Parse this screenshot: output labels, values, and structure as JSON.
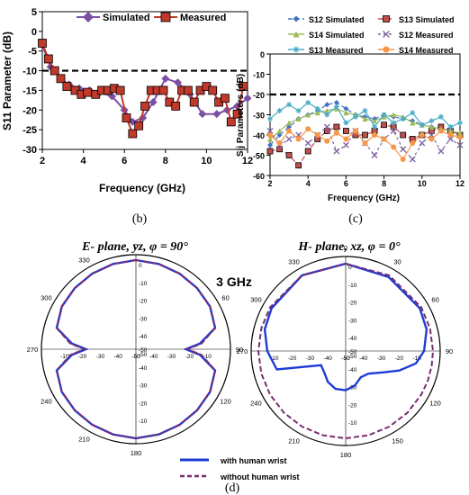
{
  "chart_data": [
    {
      "panel": "(b)",
      "type": "line",
      "ylabel": "S11 Parameter (dB)",
      "xlabel": "Frequency (GHz)",
      "xlim": [
        2,
        12
      ],
      "ylim": [
        -30,
        5
      ],
      "xticks": [
        "2",
        "4",
        "6",
        "8",
        "10",
        "12"
      ],
      "yticks": [
        "5",
        "0",
        "-5",
        "-10",
        "-15",
        "-20",
        "-25",
        "-30"
      ],
      "threshold": -10,
      "legend_position": "top",
      "series": [
        {
          "name": "Simulated",
          "color": "#7b4fa3",
          "marker": "diamond",
          "x": [
            2.0,
            2.4,
            2.9,
            3.3,
            3.8,
            4.3,
            4.8,
            5.4,
            6.0,
            6.4,
            6.9,
            7.4,
            8.0,
            8.6,
            9.2,
            9.8,
            10.5,
            11.0,
            11.5,
            12.0
          ],
          "y": [
            -3.5,
            -9,
            -12,
            -13.5,
            -14.5,
            -15,
            -15.5,
            -16.5,
            -20,
            -23,
            -22,
            -18,
            -12,
            -13,
            -16,
            -21,
            -21,
            -20,
            -19,
            -17
          ]
        },
        {
          "name": "Measured",
          "color": "#c0392b",
          "marker": "square",
          "x": [
            2.0,
            2.3,
            2.6,
            2.9,
            3.2,
            3.6,
            3.9,
            4.2,
            4.6,
            4.9,
            5.2,
            5.5,
            5.8,
            6.1,
            6.4,
            6.7,
            7.0,
            7.3,
            7.6,
            7.9,
            8.2,
            8.5,
            8.8,
            9.1,
            9.4,
            9.7,
            10.0,
            10.3,
            10.6,
            10.9,
            11.2,
            11.5,
            11.8
          ],
          "y": [
            -3,
            -7,
            -10,
            -12,
            -14,
            -15,
            -16,
            -15.5,
            -16,
            -15,
            -15,
            -14.5,
            -15,
            -22,
            -26,
            -24,
            -19,
            -15,
            -15,
            -15,
            -18,
            -19,
            -15,
            -15,
            -18,
            -15,
            -14,
            -15,
            -18,
            -17,
            -23,
            -21,
            -14
          ]
        }
      ]
    },
    {
      "panel": "(c)",
      "type": "line",
      "ylabel": "Sij Parameters (dB)",
      "xlabel": "Frequency (GHz)",
      "xlim": [
        2,
        12
      ],
      "ylim": [
        -60,
        0
      ],
      "xticks": [
        "2",
        "4",
        "6",
        "8",
        "10",
        "12"
      ],
      "yticks": [
        "0",
        "-10",
        "-20",
        "-30",
        "-40",
        "-50",
        "-60"
      ],
      "threshold": -20,
      "legend_position": "top",
      "x": [
        2,
        2.5,
        3,
        3.5,
        4,
        4.5,
        5,
        5.5,
        6,
        6.5,
        7,
        7.5,
        8,
        8.5,
        9,
        9.5,
        10,
        10.5,
        11,
        11.5,
        12
      ],
      "series": [
        {
          "name": "S12 Simulated",
          "color": "#4472c4",
          "marker": "diamond",
          "dash": "5,3",
          "y": [
            -45,
            -40,
            -36,
            -32,
            -30,
            -28,
            -25,
            -24,
            -27,
            -30,
            -31,
            -32,
            -30,
            -31,
            -32,
            -33,
            -35,
            -36,
            -37,
            -38,
            -40
          ]
        },
        {
          "name": "S13 Simulated",
          "color": "#c0504d",
          "marker": "square",
          "dash": "6,3",
          "y": [
            -48,
            -47,
            -50,
            -55,
            -48,
            -42,
            -38,
            -36,
            -38,
            -40,
            -40,
            -38,
            -35,
            -36,
            -40,
            -42,
            -40,
            -38,
            -36,
            -38,
            -40
          ]
        },
        {
          "name": "S14 Simulated",
          "color": "#9bbb59",
          "marker": "triangle",
          "dash": "",
          "y": [
            -42,
            -38,
            -34,
            -32,
            -30,
            -29,
            -28,
            -27,
            -29,
            -30,
            -32,
            -33,
            -31,
            -30,
            -31,
            -34,
            -35,
            -36,
            -37,
            -38,
            -39
          ]
        },
        {
          "name": "S12 Measured",
          "color": "#8064a2",
          "marker": "x",
          "dash": "3,3",
          "y": [
            -38,
            -45,
            -42,
            -40,
            -44,
            -40,
            -36,
            -48,
            -45,
            -38,
            -44,
            -50,
            -42,
            -38,
            -47,
            -52,
            -44,
            -40,
            -48,
            -42,
            -45
          ]
        },
        {
          "name": "S13 Measured",
          "color": "#4bacc6",
          "marker": "star",
          "dash": "",
          "y": [
            -32,
            -28,
            -25,
            -28,
            -24,
            -27,
            -30,
            -26,
            -34,
            -31,
            -28,
            -36,
            -30,
            -34,
            -32,
            -29,
            -35,
            -33,
            -31,
            -36,
            -34
          ]
        },
        {
          "name": "S14 Measured",
          "color": "#f79646",
          "marker": "circle",
          "dash": "",
          "y": [
            -40,
            -44,
            -38,
            -42,
            -37,
            -40,
            -43,
            -39,
            -42,
            -38,
            -44,
            -40,
            -42,
            -46,
            -52,
            -44,
            -40,
            -42,
            -38,
            -40,
            -41
          ]
        }
      ]
    },
    {
      "panel": "(d) left",
      "type": "polar",
      "title": "E- plane, yz, φ = 90°",
      "r_min": -50,
      "r_max": 0,
      "r_ticks": [
        "0",
        "-10",
        "-20",
        "-30",
        "-40",
        "-50"
      ],
      "r_ticks_horizontal": [
        "-10",
        "-20",
        "-30",
        "-40",
        "-50"
      ],
      "angle_labels": [
        "0",
        "60",
        "90",
        "120",
        "180",
        "210",
        "240",
        "270",
        "300",
        "330"
      ],
      "angles_deg": [
        0,
        15,
        30,
        45,
        60,
        75,
        85,
        90,
        95,
        105,
        120,
        135,
        150,
        165,
        180,
        195,
        210,
        225,
        240,
        255,
        265,
        270,
        275,
        285,
        300,
        315,
        330,
        345
      ],
      "series": [
        {
          "name": "with human wrist",
          "color": "#1f3bd6",
          "values": [
            0,
            -0.5,
            -1,
            -1.5,
            -2,
            -4,
            -14,
            -22,
            -14,
            -4,
            -2,
            -1.5,
            -1,
            -0.5,
            0,
            -0.5,
            -1,
            -1.5,
            -2,
            -4,
            -14,
            -22,
            -14,
            -4,
            -2,
            -1.5,
            -1,
            -0.5
          ]
        },
        {
          "name": "without human wrist",
          "color": "#7a2e6e",
          "values": [
            0,
            -0.5,
            -1,
            -1.5,
            -2,
            -4,
            -13,
            -21,
            -13,
            -4,
            -2,
            -1.5,
            -1,
            -0.5,
            0,
            -0.5,
            -1,
            -1.5,
            -2,
            -4,
            -13,
            -21,
            -13,
            -4,
            -2,
            -1.5,
            -1,
            -0.5
          ]
        }
      ]
    },
    {
      "panel": "(d) right",
      "type": "polar",
      "title": "H- plane, xz, φ = 0°",
      "r_min": -50,
      "r_max": 0,
      "r_ticks": [
        "0",
        "-10",
        "-20",
        "-30",
        "-40",
        "-50"
      ],
      "r_ticks_horizontal": [
        "-10",
        "-20",
        "-30",
        "-40",
        "-50"
      ],
      "angle_labels": [
        "0",
        "30",
        "60",
        "90",
        "120",
        "150",
        "180",
        "210",
        "240",
        "270",
        "300",
        "330"
      ],
      "angles_deg": [
        0,
        30,
        60,
        75,
        90,
        100,
        110,
        120,
        135,
        150,
        165,
        180,
        195,
        210,
        225,
        240,
        255,
        270,
        285,
        300,
        330
      ],
      "series": [
        {
          "name": "with human wrist",
          "color": "#1f3bd6",
          "values": [
            -1,
            -2,
            -2,
            -3,
            -6,
            -10,
            -18,
            -26,
            -32,
            -33,
            -30,
            -28,
            -28,
            -30,
            -33,
            -34,
            -10,
            -6,
            -3,
            -2,
            -1
          ]
        },
        {
          "name": "without human wrist",
          "color": "#7a2e6e",
          "values": [
            -1,
            -1,
            -1,
            -1,
            -1,
            -1,
            -1,
            -1,
            -1,
            -1,
            -1,
            -1,
            -1,
            -1,
            -1,
            -1,
            -1,
            -1,
            -1,
            -1,
            -1
          ]
        }
      ]
    }
  ],
  "annotation": "3 GHz",
  "captions": {
    "b": "(b)",
    "c": "(c)",
    "d": "(d)"
  }
}
